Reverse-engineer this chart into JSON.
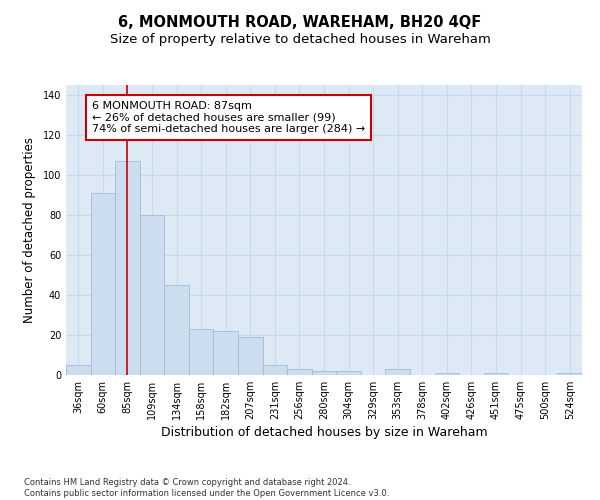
{
  "title": "6, MONMOUTH ROAD, WAREHAM, BH20 4QF",
  "subtitle": "Size of property relative to detached houses in Wareham",
  "xlabel": "Distribution of detached houses by size in Wareham",
  "ylabel": "Number of detached properties",
  "categories": [
    "36sqm",
    "60sqm",
    "85sqm",
    "109sqm",
    "134sqm",
    "158sqm",
    "182sqm",
    "207sqm",
    "231sqm",
    "256sqm",
    "280sqm",
    "304sqm",
    "329sqm",
    "353sqm",
    "378sqm",
    "402sqm",
    "426sqm",
    "451sqm",
    "475sqm",
    "500sqm",
    "524sqm"
  ],
  "values": [
    5,
    91,
    107,
    80,
    45,
    23,
    22,
    19,
    5,
    3,
    2,
    2,
    0,
    3,
    0,
    1,
    0,
    1,
    0,
    0,
    1
  ],
  "bar_color": "#ccddf0",
  "bar_edgecolor": "#a0bcd8",
  "vline_x": 2,
  "vline_color": "#cc0000",
  "annotation_text": "6 MONMOUTH ROAD: 87sqm\n← 26% of detached houses are smaller (99)\n74% of semi-detached houses are larger (284) →",
  "annotation_box_facecolor": "#ffffff",
  "annotation_box_edgecolor": "#cc0000",
  "ylim": [
    0,
    145
  ],
  "yticks": [
    0,
    20,
    40,
    60,
    80,
    100,
    120,
    140
  ],
  "grid_color": "#c8d8ea",
  "bg_color": "#ddeaf5",
  "footer": "Contains HM Land Registry data © Crown copyright and database right 2024.\nContains public sector information licensed under the Open Government Licence v3.0.",
  "title_fontsize": 10.5,
  "subtitle_fontsize": 9.5,
  "xlabel_fontsize": 9,
  "ylabel_fontsize": 8.5,
  "tick_fontsize": 7,
  "annotation_fontsize": 8,
  "footer_fontsize": 6
}
